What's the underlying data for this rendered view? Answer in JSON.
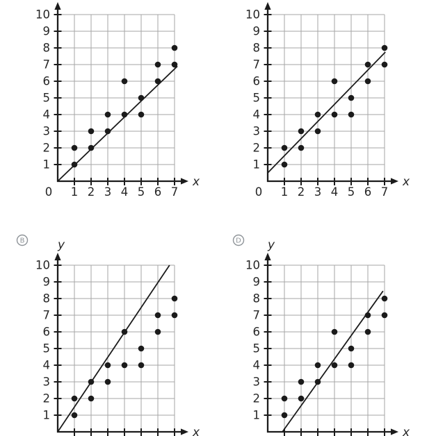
{
  "figure": {
    "description_colors": {
      "ink": "#1b1b1b",
      "grid": "#a6a6a6",
      "label": "#262626",
      "badge": "#8e9398",
      "background": "#ffffff"
    }
  },
  "chart_data": [
    {
      "id": "scatter-option-top-left",
      "type": "scatter",
      "badge": "",
      "xlabel": "x",
      "ylabel": "",
      "origin_label": "0",
      "x_tick_labels": [
        "1",
        "2",
        "3",
        "4",
        "5",
        "6",
        "7"
      ],
      "y_tick_labels": [
        "1",
        "2",
        "3",
        "4",
        "5",
        "6",
        "7",
        "8",
        "9",
        "10"
      ],
      "xlim": [
        0,
        7
      ],
      "ylim": [
        0,
        10
      ],
      "grid": true,
      "points": [
        [
          1,
          1
        ],
        [
          1,
          2
        ],
        [
          2,
          2
        ],
        [
          2,
          3
        ],
        [
          3,
          3
        ],
        [
          3,
          4
        ],
        [
          4,
          4
        ],
        [
          4,
          6
        ],
        [
          5,
          4
        ],
        [
          5,
          5
        ],
        [
          6,
          6
        ],
        [
          6,
          7
        ],
        [
          7,
          7
        ],
        [
          7,
          8
        ]
      ],
      "trend_line": {
        "from": [
          0,
          0
        ],
        "to": [
          7.17,
          6.9
        ]
      }
    },
    {
      "id": "scatter-option-top-right",
      "type": "scatter",
      "badge": "",
      "xlabel": "x",
      "ylabel": "",
      "origin_label": "0",
      "x_tick_labels": [
        "1",
        "2",
        "3",
        "4",
        "5",
        "6",
        "7"
      ],
      "y_tick_labels": [
        "1",
        "2",
        "3",
        "4",
        "5",
        "6",
        "7",
        "8",
        "9",
        "10"
      ],
      "xlim": [
        0,
        7
      ],
      "ylim": [
        0,
        10
      ],
      "grid": true,
      "points": [
        [
          1,
          1
        ],
        [
          1,
          2
        ],
        [
          2,
          2
        ],
        [
          2,
          3
        ],
        [
          3,
          3
        ],
        [
          3,
          4
        ],
        [
          4,
          4
        ],
        [
          4,
          6
        ],
        [
          5,
          4
        ],
        [
          5,
          5
        ],
        [
          6,
          6
        ],
        [
          6,
          7
        ],
        [
          7,
          7
        ],
        [
          7,
          8
        ]
      ],
      "trend_line": {
        "from": [
          0,
          0.5
        ],
        "to": [
          7.05,
          7.75
        ]
      }
    },
    {
      "id": "scatter-option-B",
      "type": "scatter",
      "badge": "B",
      "xlabel": "x",
      "ylabel": "y",
      "origin_label": "",
      "x_tick_labels": [],
      "y_tick_labels": [
        "1",
        "2",
        "3",
        "4",
        "5",
        "6",
        "7",
        "8",
        "9",
        "10"
      ],
      "xlim": [
        0,
        7
      ],
      "ylim": [
        0,
        10
      ],
      "grid": true,
      "points": [
        [
          1,
          1
        ],
        [
          1,
          2
        ],
        [
          2,
          2
        ],
        [
          2,
          3
        ],
        [
          3,
          3
        ],
        [
          3,
          4
        ],
        [
          4,
          4
        ],
        [
          4,
          6
        ],
        [
          5,
          4
        ],
        [
          5,
          5
        ],
        [
          6,
          6
        ],
        [
          6,
          7
        ],
        [
          7,
          7
        ],
        [
          7,
          8
        ]
      ],
      "trend_line": {
        "from": [
          0,
          0
        ],
        "to": [
          6.7,
          10
        ]
      }
    },
    {
      "id": "scatter-option-D",
      "type": "scatter",
      "badge": "D",
      "xlabel": "x",
      "ylabel": "y",
      "origin_label": "",
      "x_tick_labels": [],
      "y_tick_labels": [
        "1",
        "2",
        "3",
        "4",
        "5",
        "6",
        "7",
        "8",
        "9",
        "10"
      ],
      "xlim": [
        0,
        7
      ],
      "ylim": [
        0,
        10
      ],
      "grid": true,
      "points": [
        [
          1,
          1
        ],
        [
          1,
          2
        ],
        [
          2,
          2
        ],
        [
          2,
          3
        ],
        [
          3,
          3
        ],
        [
          3,
          4
        ],
        [
          4,
          4
        ],
        [
          4,
          6
        ],
        [
          5,
          4
        ],
        [
          5,
          5
        ],
        [
          6,
          6
        ],
        [
          6,
          7
        ],
        [
          7,
          7
        ],
        [
          7,
          8
        ]
      ],
      "trend_line": {
        "from": [
          0.88,
          0
        ],
        "to": [
          6.91,
          8.45
        ]
      }
    }
  ]
}
